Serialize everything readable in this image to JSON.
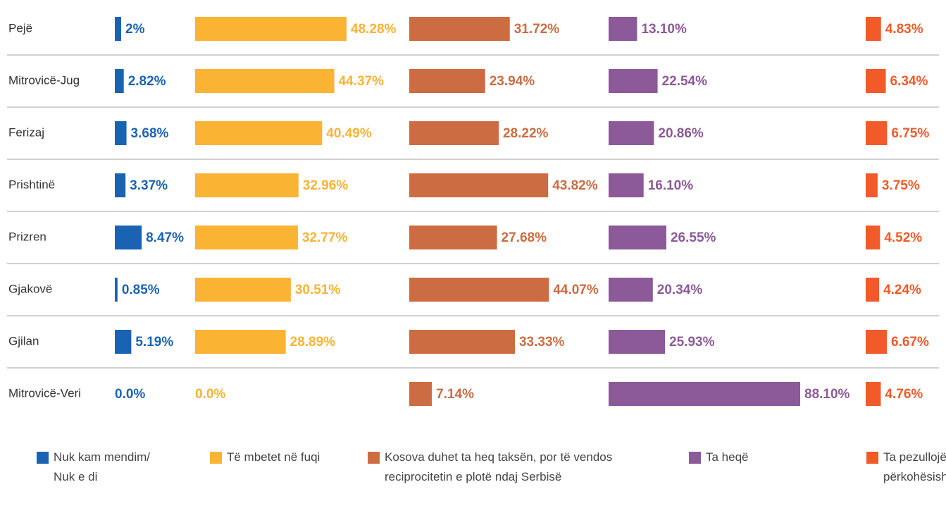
{
  "chart_data": {
    "type": "bar",
    "orientation": "horizontal",
    "categories": [
      "Pejë",
      "Mitrovicë-Jug",
      "Ferizaj",
      "Prishtinë",
      "Prizren",
      "Gjakovë",
      "Gjilan",
      "Mitrovicë-Veri"
    ],
    "series": [
      {
        "name": "Nuk kam mendim/ Nuk e di",
        "color": "#1a63b3",
        "values": [
          2,
          2.82,
          3.68,
          3.37,
          8.47,
          0.85,
          5.19,
          0.0
        ],
        "value_labels": [
          "2%",
          "2.82%",
          "3.68%",
          "3.37%",
          "8.47%",
          "0.85%",
          "5.19%",
          "0.0%"
        ]
      },
      {
        "name": "Të mbetet në fuqi",
        "color": "#fbb333",
        "values": [
          48.28,
          44.37,
          40.49,
          32.96,
          32.77,
          30.51,
          28.89,
          0.0
        ],
        "value_labels": [
          "48.28%",
          "44.37%",
          "40.49%",
          "32.96%",
          "32.77%",
          "30.51%",
          "28.89%",
          "0.0%"
        ]
      },
      {
        "name": "Kosova duhet ta heq taksën, por të vendos reciprocitetin e plotë ndaj Serbisë",
        "color": "#cc6c42",
        "values": [
          31.72,
          23.94,
          28.22,
          43.82,
          27.68,
          44.07,
          33.33,
          7.14
        ],
        "value_labels": [
          "31.72%",
          "23.94%",
          "28.22%",
          "43.82%",
          "27.68%",
          "44.07%",
          "33.33%",
          "7.14%"
        ]
      },
      {
        "name": "Ta heqë",
        "color": "#8c5a98",
        "values": [
          13.1,
          22.54,
          20.86,
          16.1,
          26.55,
          20.34,
          25.93,
          88.1
        ],
        "value_labels": [
          "13.10%",
          "22.54%",
          "20.86%",
          "16.10%",
          "26.55%",
          "20.34%",
          "25.93%",
          "88.10%"
        ]
      },
      {
        "name": "Ta pezullojë përkohësisht",
        "color": "#f15a29",
        "values": [
          4.83,
          6.34,
          6.75,
          3.75,
          4.52,
          4.24,
          6.67,
          4.76
        ],
        "value_labels": [
          "4.83%",
          "6.34%",
          "6.75%",
          "3.75%",
          "4.52%",
          "4.24%",
          "6.67%",
          "4.76%"
        ]
      }
    ]
  }
}
